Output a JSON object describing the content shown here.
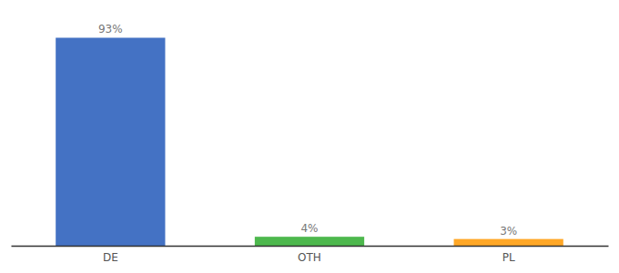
{
  "chart_data": {
    "type": "bar",
    "categories": [
      "DE",
      "OTH",
      "PL"
    ],
    "values": [
      93,
      4,
      3
    ],
    "value_labels": [
      "93%",
      "4%",
      "3%"
    ],
    "colors": [
      "#4472c4",
      "#4db84d",
      "#ffa726"
    ],
    "ylim": [
      0,
      105
    ],
    "data_labels": true,
    "tick_labels": "x"
  }
}
